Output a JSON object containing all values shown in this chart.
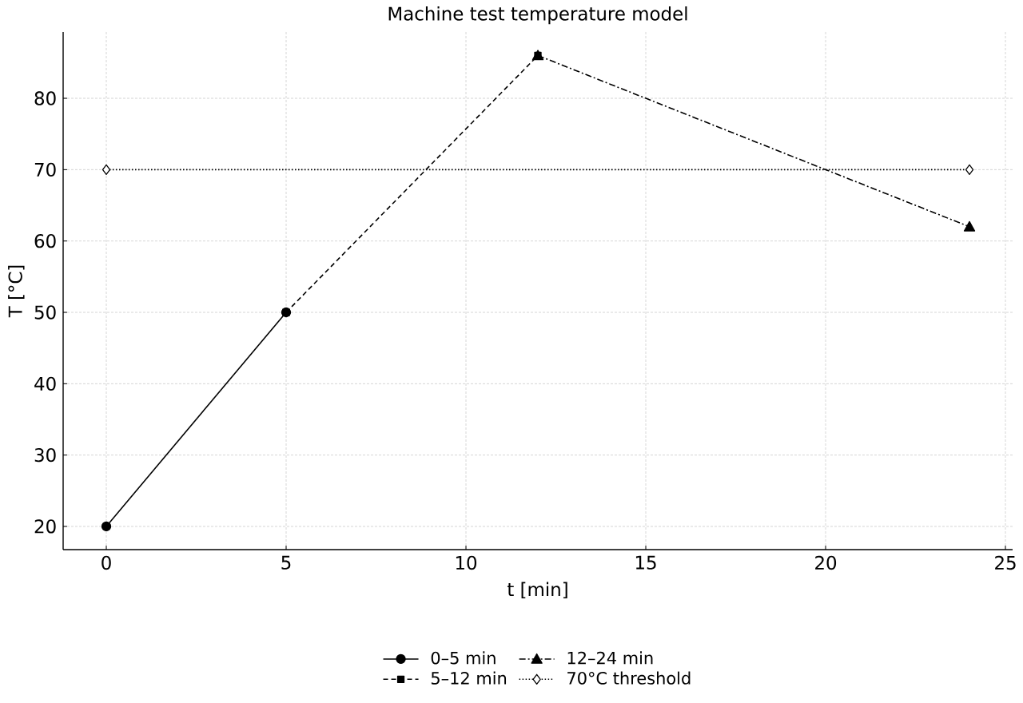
{
  "chart_data": {
    "type": "line",
    "title": "Machine test temperature model",
    "xlabel": "t [min]",
    "ylabel": "T [°C]",
    "xlim": [
      -1.2,
      25.2
    ],
    "ylim": [
      16.75,
      89.3
    ],
    "xticks": [
      0,
      5,
      10,
      15,
      20,
      25
    ],
    "yticks": [
      20,
      30,
      40,
      50,
      60,
      70,
      80
    ],
    "grid": true,
    "legend": "bottom",
    "series": [
      {
        "name": "0–5 min",
        "color": "#000000",
        "x": [
          0,
          5
        ],
        "values": [
          20,
          50
        ],
        "marker": "circle",
        "line_style": "solid"
      },
      {
        "name": "5–12 min",
        "color": "#000000",
        "x": [
          5,
          12
        ],
        "values": [
          50,
          86
        ],
        "marker": "square",
        "line_style": "dashed"
      },
      {
        "name": "12–24 min",
        "color": "#000000",
        "x": [
          12,
          24
        ],
        "values": [
          86,
          62
        ],
        "marker": "triangle",
        "line_style": "dashdot"
      },
      {
        "name": "70°C threshold",
        "color": "#000000",
        "x": [
          0,
          24
        ],
        "values": [
          70,
          70
        ],
        "marker": "diamond",
        "line_style": "dotted"
      }
    ]
  }
}
